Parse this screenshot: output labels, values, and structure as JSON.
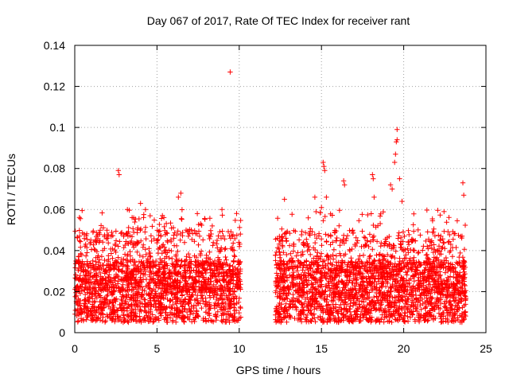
{
  "chart_data": {
    "type": "scatter",
    "title": "Day 067 of 2017, Rate Of TEC Index for receiver rant",
    "xlabel": "GPS time / hours",
    "ylabel": "ROTI / TECUs",
    "xlim": [
      0,
      25
    ],
    "ylim": [
      0,
      0.14
    ],
    "x_ticks": [
      0,
      5,
      10,
      15,
      20,
      25
    ],
    "y_ticks": [
      0,
      0.02,
      0.04,
      0.06,
      0.08,
      0.1,
      0.12,
      0.14
    ],
    "x_tick_labels": [
      "0",
      "5",
      "10",
      "15",
      "20",
      "25"
    ],
    "y_tick_labels": [
      "0",
      "0.02",
      "0.04",
      "0.06",
      "0.08",
      "0.1",
      "0.12",
      "0.14"
    ],
    "grid": true,
    "marker": "+",
    "color": "#ff0000",
    "segments": [
      {
        "start": 0.0,
        "end": 10.1,
        "note": "dense band, data gap follows"
      },
      {
        "start": 12.2,
        "end": 23.8,
        "note": "dense band"
      }
    ],
    "band_typical_range": [
      0.005,
      0.035
    ],
    "notable_points": [
      {
        "x": 9.45,
        "y": 0.127
      },
      {
        "x": 19.6,
        "y": 0.099
      },
      {
        "x": 19.6,
        "y": 0.094
      },
      {
        "x": 19.55,
        "y": 0.093
      },
      {
        "x": 19.5,
        "y": 0.087
      },
      {
        "x": 19.45,
        "y": 0.083
      },
      {
        "x": 15.1,
        "y": 0.083
      },
      {
        "x": 15.15,
        "y": 0.081
      },
      {
        "x": 15.2,
        "y": 0.079
      },
      {
        "x": 2.65,
        "y": 0.079
      },
      {
        "x": 2.7,
        "y": 0.077
      },
      {
        "x": 18.1,
        "y": 0.077
      },
      {
        "x": 18.15,
        "y": 0.075
      },
      {
        "x": 16.35,
        "y": 0.074
      },
      {
        "x": 16.4,
        "y": 0.072
      },
      {
        "x": 19.2,
        "y": 0.072
      },
      {
        "x": 19.3,
        "y": 0.07
      },
      {
        "x": 23.6,
        "y": 0.073
      },
      {
        "x": 23.65,
        "y": 0.067
      },
      {
        "x": 19.75,
        "y": 0.075
      },
      {
        "x": 19.9,
        "y": 0.064
      },
      {
        "x": 18.2,
        "y": 0.066
      },
      {
        "x": 6.45,
        "y": 0.068
      },
      {
        "x": 6.3,
        "y": 0.066
      },
      {
        "x": 12.75,
        "y": 0.065
      },
      {
        "x": 14.6,
        "y": 0.066
      },
      {
        "x": 15.3,
        "y": 0.066
      },
      {
        "x": 4.0,
        "y": 0.063
      },
      {
        "x": 3.2,
        "y": 0.06
      },
      {
        "x": 4.3,
        "y": 0.06
      },
      {
        "x": 8.95,
        "y": 0.06
      },
      {
        "x": 7.45,
        "y": 0.058
      },
      {
        "x": 22.45,
        "y": 0.059
      },
      {
        "x": 15.0,
        "y": 0.061
      }
    ]
  }
}
